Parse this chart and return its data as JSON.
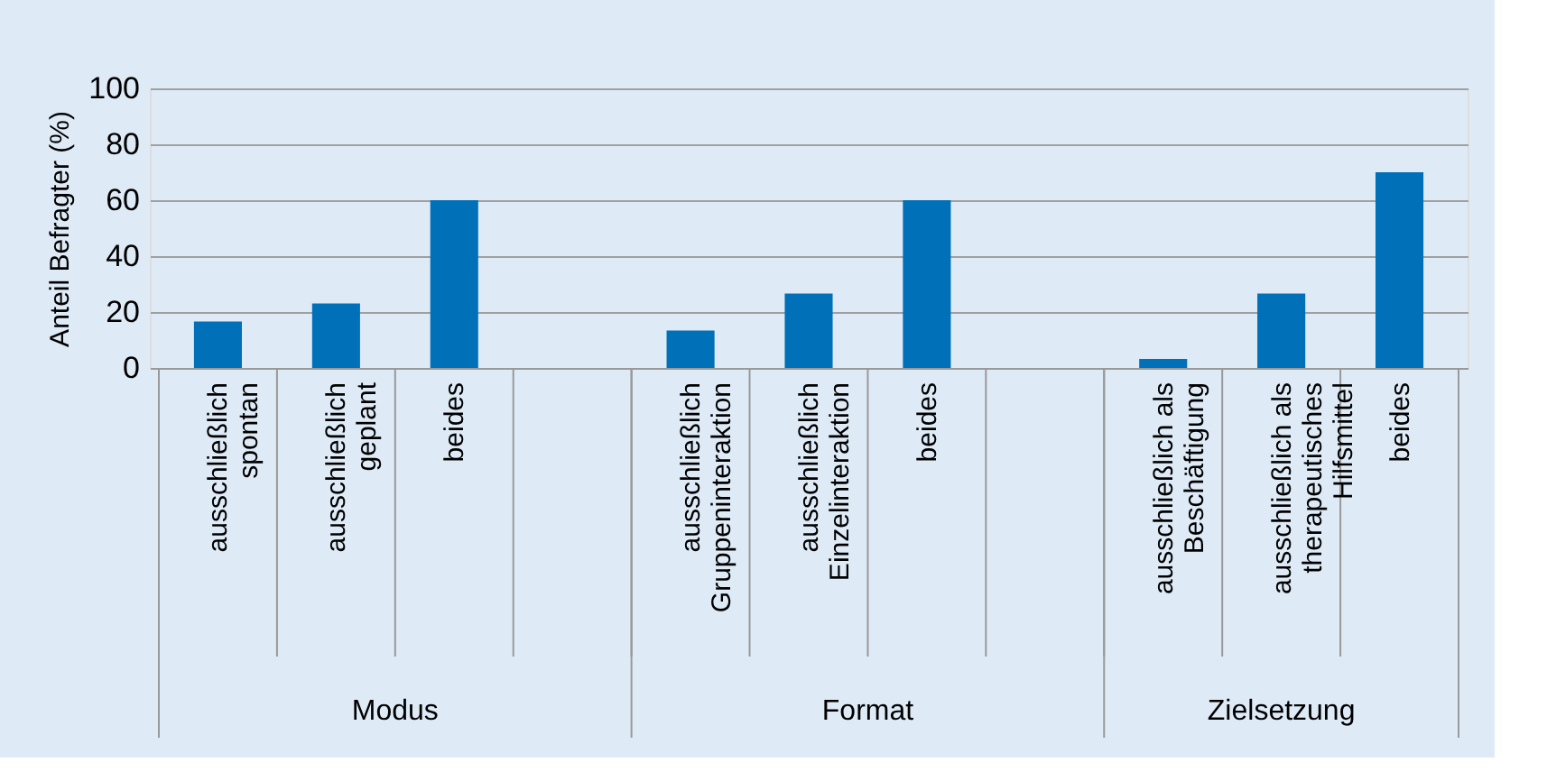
{
  "chart_data": {
    "type": "bar",
    "ylabel": "Anteil Befragter (%)",
    "categories": [
      "ausschließlich spontan",
      "ausschließlich geplant",
      "beides",
      null,
      "ausschließlich Gruppeninteraktion",
      "ausschließlich Einzelinteraktion",
      "beides",
      null,
      "ausschließlich als Beschäftigung",
      "ausschließlich als therapeutisches Hilfsmittel",
      "beides"
    ],
    "values": [
      16.6,
      23.1,
      60,
      null,
      13.4,
      26.6,
      60,
      null,
      3.2,
      26.6,
      70
    ],
    "color": "#0070b8",
    "ylim": [
      0,
      100
    ],
    "yticks": [
      0,
      20,
      40,
      60,
      80,
      100
    ],
    "grid": "y",
    "annotations": [
      "Modus",
      "Format",
      "Zielsetzung"
    ]
  }
}
